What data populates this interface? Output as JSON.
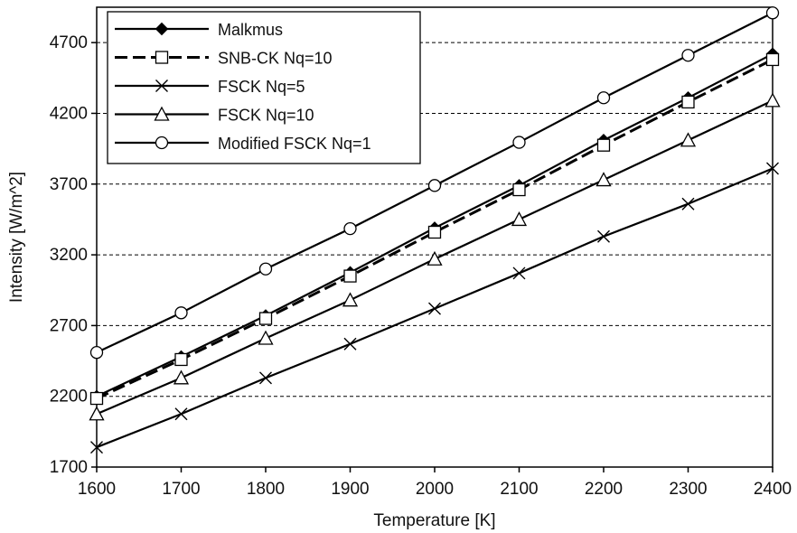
{
  "chart_data": {
    "type": "line",
    "title": "",
    "xlabel": "Temperature [K]",
    "ylabel": "Intensity [W/m^2]",
    "xlim": [
      1600,
      2400
    ],
    "ylim": [
      1700,
      4950
    ],
    "x_ticks": [
      1600,
      1700,
      1800,
      1900,
      2000,
      2100,
      2200,
      2300,
      2400
    ],
    "y_ticks": [
      1700,
      2200,
      2700,
      3200,
      3700,
      4200,
      4700
    ],
    "grid": "horizontal dashed at y ticks",
    "legend_position": "top-left",
    "x": [
      1600,
      1700,
      1800,
      1900,
      2000,
      2100,
      2200,
      2300,
      2400
    ],
    "series": [
      {
        "name": "Malkmus",
        "marker": "filled-diamond",
        "dash": "solid",
        "values": [
          2200,
          2480,
          2770,
          3075,
          3390,
          3690,
          4010,
          4310,
          4620
        ]
      },
      {
        "name": "SNB-CK Nq=10",
        "marker": "open-square",
        "dash": "dashed",
        "values": [
          2185,
          2460,
          2750,
          3050,
          3360,
          3660,
          3975,
          4280,
          4580
        ]
      },
      {
        "name": "FSCK Nq=5",
        "marker": "x",
        "dash": "solid",
        "values": [
          1840,
          2075,
          2330,
          2570,
          2820,
          3070,
          3330,
          3560,
          3810
        ]
      },
      {
        "name": "FSCK Nq=10",
        "marker": "open-triangle",
        "dash": "solid",
        "values": [
          2075,
          2330,
          2610,
          2880,
          3170,
          3450,
          3730,
          4010,
          4290
        ]
      },
      {
        "name": "Modified FSCK Nq=1",
        "marker": "open-circle",
        "dash": "solid",
        "values": [
          2510,
          2790,
          3100,
          3385,
          3690,
          3995,
          4310,
          4610,
          4910
        ]
      }
    ]
  }
}
